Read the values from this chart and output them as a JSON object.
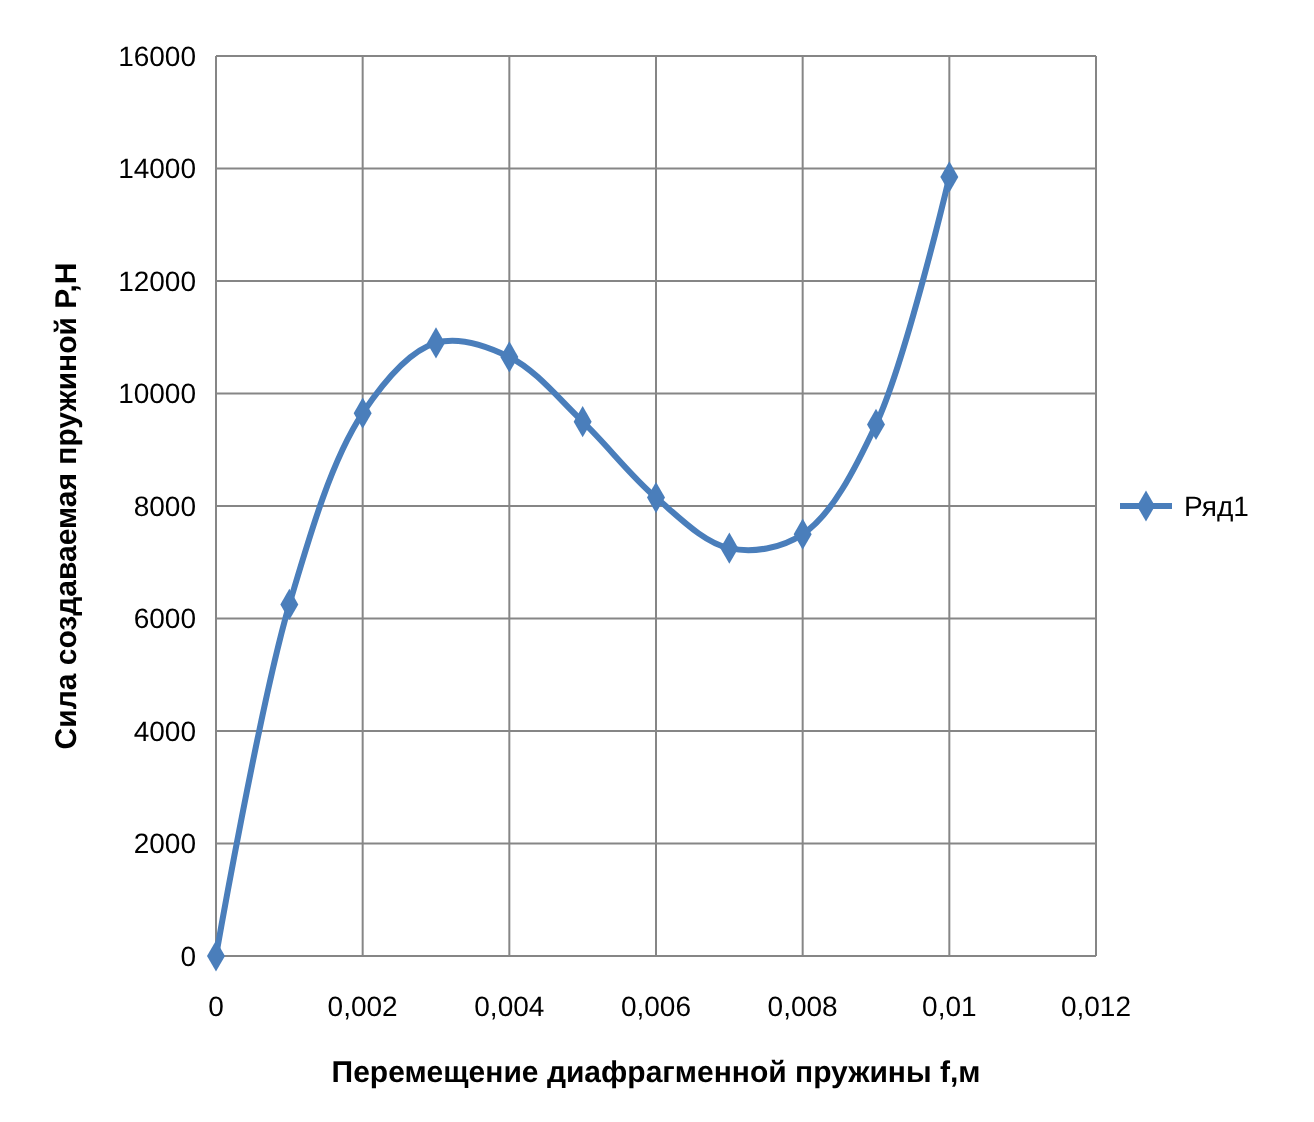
{
  "chart_data": {
    "type": "line",
    "xlabel": "Перемещение диафрагменной пружины f,м",
    "ylabel": "Сила создаваемая пружиной P,H",
    "x": [
      0,
      0.001,
      0.002,
      0.003,
      0.004,
      0.005,
      0.006,
      0.007,
      0.008,
      0.009,
      0.01
    ],
    "series": [
      {
        "name": "Ряд1",
        "color": "#4a7ebb",
        "values": [
          0,
          6250,
          9650,
          10900,
          10650,
          9500,
          8150,
          7250,
          7500,
          9450,
          13850
        ]
      }
    ],
    "xlim": [
      0,
      0.012
    ],
    "xticks": [
      {
        "value": 0,
        "label": "0"
      },
      {
        "value": 0.002,
        "label": "0,002"
      },
      {
        "value": 0.004,
        "label": "0,004"
      },
      {
        "value": 0.006,
        "label": "0,006"
      },
      {
        "value": 0.008,
        "label": "0,008"
      },
      {
        "value": 0.01,
        "label": "0,01"
      },
      {
        "value": 0.012,
        "label": "0,012"
      }
    ],
    "ylim": [
      0,
      16000
    ],
    "yticks": [
      0,
      2000,
      4000,
      6000,
      8000,
      10000,
      12000,
      14000,
      16000
    ],
    "grid": true,
    "legend": "right",
    "marker": "diamond",
    "line_style": "solid"
  }
}
